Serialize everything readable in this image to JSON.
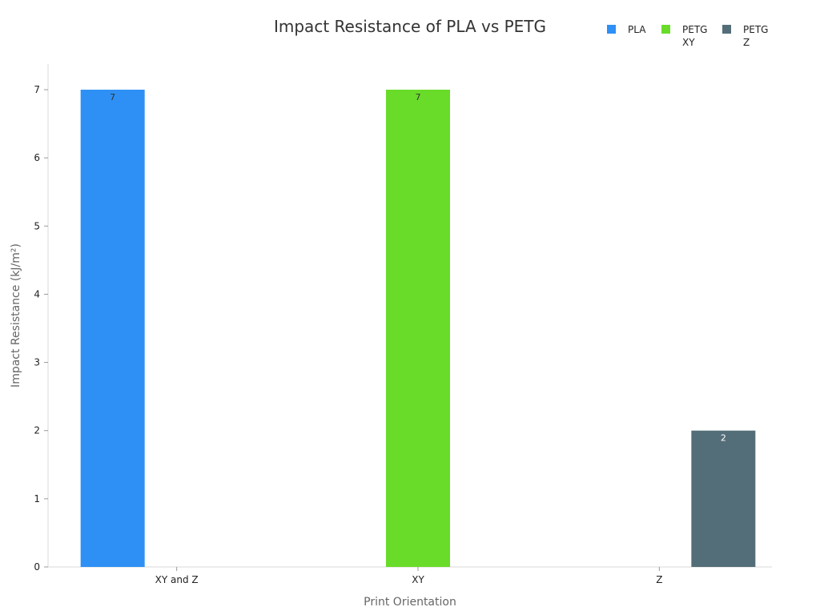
{
  "chart_data": {
    "type": "bar",
    "title": "Impact Resistance of PLA vs PETG",
    "xlabel": "Print Orientation",
    "ylabel": "Impact Resistance (kJ/m²)",
    "categories": [
      "XY and Z",
      "XY",
      "Z"
    ],
    "ylim": [
      0,
      7
    ],
    "yticks": [
      0,
      1,
      2,
      3,
      4,
      5,
      6,
      7
    ],
    "grid": false,
    "legend_position": "top-right",
    "series": [
      {
        "name": "PLA",
        "legend_lines": [
          "PLA"
        ],
        "color": "#2E90F5",
        "label_color": "#333333",
        "values": [
          7,
          null,
          null
        ]
      },
      {
        "name": "PETG XY",
        "legend_lines": [
          "PETG",
          "XY"
        ],
        "color": "#69DC29",
        "label_color": "#333333",
        "values": [
          null,
          7,
          null
        ]
      },
      {
        "name": "PETG Z",
        "legend_lines": [
          "PETG",
          "Z"
        ],
        "color": "#546E79",
        "label_color": "#ffffff",
        "values": [
          null,
          null,
          2
        ]
      }
    ]
  }
}
